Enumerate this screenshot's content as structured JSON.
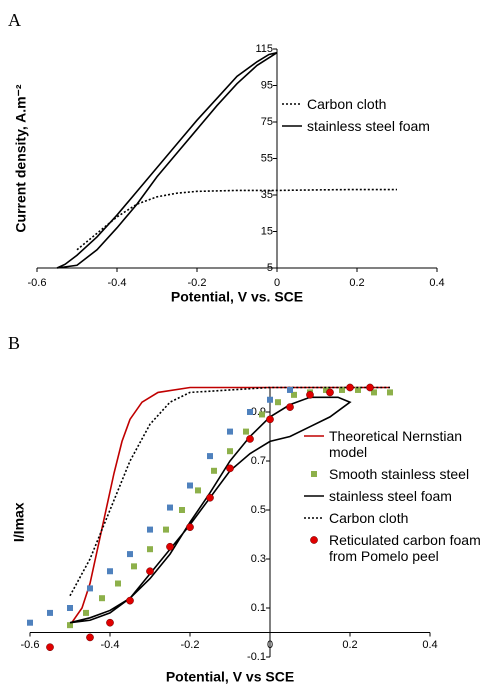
{
  "chart_data": [
    {
      "type": "line",
      "panel_label": "A",
      "x_label": "Potential, V vs. SCE",
      "y_label": "Current density, A.m⁻²",
      "xlim": [
        -0.6,
        0.4
      ],
      "xticks": [
        -0.6,
        -0.4,
        -0.2,
        0,
        0.2,
        0.4
      ],
      "ylim": [
        -5,
        115
      ],
      "yticks": [
        -5,
        15,
        35,
        55,
        75,
        95,
        115
      ],
      "series": [
        {
          "name": "Carbon cloth",
          "style": "dotted",
          "color": "#000000",
          "x": [
            -0.5,
            -0.45,
            -0.4,
            -0.35,
            -0.3,
            -0.25,
            -0.2,
            -0.1,
            0,
            0.1,
            0.2,
            0.3
          ],
          "values": [
            5,
            14,
            23,
            30,
            34,
            36,
            37,
            37.5,
            37.5,
            37.8,
            38,
            38
          ]
        },
        {
          "name": "stainless steel foam",
          "style": "solid",
          "color": "#000000",
          "x": [
            -0.55,
            -0.5,
            -0.45,
            -0.4,
            -0.35,
            -0.3,
            -0.25,
            -0.2,
            -0.15,
            -0.1,
            -0.05,
            0,
            -0.02,
            -0.05,
            -0.1,
            -0.15,
            -0.2,
            -0.25,
            -0.3,
            -0.35,
            -0.4,
            -0.45,
            -0.5,
            -0.53,
            -0.55
          ],
          "values": [
            -5,
            -3.5,
            5,
            17,
            30,
            45,
            58,
            71,
            84,
            96,
            106,
            113,
            112,
            108,
            100,
            88,
            76,
            63,
            50,
            37,
            24,
            12,
            2,
            -3,
            -5
          ]
        }
      ]
    },
    {
      "type": "line",
      "panel_label": "B",
      "x_label": "Potential, V vs SCE",
      "y_label": "I/Imax",
      "xlim": [
        -0.6,
        0.4
      ],
      "xticks": [
        -0.6,
        -0.4,
        -0.2,
        0,
        0.2,
        0.4
      ],
      "ylim": [
        -0.1,
        1.0
      ],
      "yticks": [
        -0.1,
        0.1,
        0.3,
        0.5,
        0.7,
        0.9
      ],
      "series": [
        {
          "name": "Theoretical Nernstian model",
          "style": "solid",
          "color": "#c00000",
          "x": [
            -0.5,
            -0.47,
            -0.45,
            -0.43,
            -0.41,
            -0.39,
            -0.37,
            -0.35,
            -0.32,
            -0.28,
            -0.2,
            0.3
          ],
          "values": [
            0.03,
            0.1,
            0.2,
            0.35,
            0.5,
            0.65,
            0.78,
            0.87,
            0.94,
            0.98,
            1.0,
            1.0
          ]
        },
        {
          "name": "Smooth stainless steel",
          "style": "square",
          "color": "#8db04a",
          "x": [
            -0.5,
            -0.46,
            -0.42,
            -0.38,
            -0.34,
            -0.3,
            -0.26,
            -0.22,
            -0.18,
            -0.14,
            -0.1,
            -0.06,
            -0.02,
            0.02,
            0.06,
            0.1,
            0.14,
            0.18,
            0.22,
            0.26,
            0.3
          ],
          "values": [
            0.03,
            0.08,
            0.14,
            0.2,
            0.27,
            0.34,
            0.42,
            0.5,
            0.58,
            0.66,
            0.74,
            0.82,
            0.89,
            0.94,
            0.97,
            0.98,
            0.99,
            0.99,
            0.99,
            0.98,
            0.98
          ]
        },
        {
          "name": "stainless steel foam",
          "style": "solid",
          "color": "#000000",
          "x": [
            -0.5,
            -0.45,
            -0.4,
            -0.35,
            -0.3,
            -0.25,
            -0.2,
            -0.15,
            -0.1,
            -0.05,
            0,
            0.05,
            0.1,
            0.15,
            0.2,
            0.17,
            0.1,
            0.05,
            0,
            -0.05,
            -0.1,
            -0.15,
            -0.2,
            -0.25,
            -0.3,
            -0.35,
            -0.4,
            -0.45,
            -0.5
          ],
          "values": [
            0.04,
            0.05,
            0.08,
            0.14,
            0.24,
            0.34,
            0.44,
            0.55,
            0.66,
            0.73,
            0.78,
            0.8,
            0.84,
            0.88,
            0.94,
            0.96,
            0.96,
            0.93,
            0.88,
            0.8,
            0.7,
            0.57,
            0.45,
            0.32,
            0.22,
            0.14,
            0.09,
            0.06,
            0.04
          ]
        },
        {
          "name": "Carbon cloth",
          "style": "dotted",
          "color": "#000000",
          "x": [
            -0.5,
            -0.45,
            -0.4,
            -0.35,
            -0.3,
            -0.25,
            -0.2,
            -0.1,
            0,
            0.3
          ],
          "values": [
            0.15,
            0.3,
            0.5,
            0.7,
            0.85,
            0.94,
            0.98,
            0.99,
            1.0,
            1.0
          ]
        },
        {
          "name": "Reticulated carbon foam from Pomelo peel",
          "style": "circle",
          "color": "#e00000",
          "x": [
            -0.55,
            -0.45,
            -0.4,
            -0.35,
            -0.3,
            -0.25,
            -0.2,
            -0.15,
            -0.1,
            -0.05,
            0,
            0.05,
            0.1,
            0.15,
            0.2,
            0.25
          ],
          "values": [
            -0.06,
            -0.02,
            0.04,
            0.13,
            0.25,
            0.35,
            0.43,
            0.55,
            0.67,
            0.79,
            0.87,
            0.92,
            0.97,
            0.98,
            1.0,
            1.0
          ]
        },
        {
          "style": "square",
          "color": "#4f81bd",
          "x": [
            -0.6,
            -0.55,
            -0.5,
            -0.45,
            -0.4,
            -0.35,
            -0.3,
            -0.25,
            -0.2,
            -0.15,
            -0.1,
            -0.05,
            0,
            0.05
          ],
          "values": [
            0.04,
            0.08,
            0.1,
            0.18,
            0.25,
            0.32,
            0.42,
            0.51,
            0.6,
            0.72,
            0.82,
            0.9,
            0.95,
            0.99
          ]
        }
      ]
    }
  ]
}
